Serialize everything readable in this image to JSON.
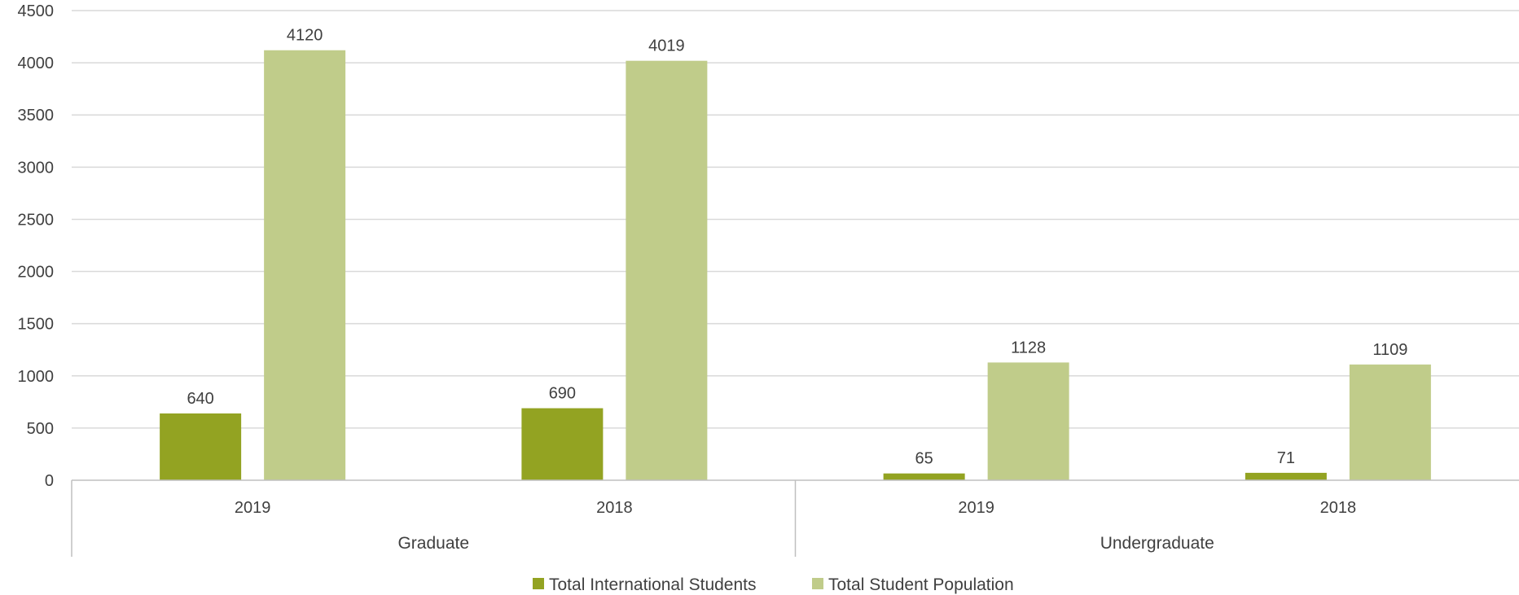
{
  "chart_data": {
    "type": "bar",
    "title": "",
    "xlabel": "",
    "ylabel": "",
    "ylim": [
      0,
      4500
    ],
    "yticks": [
      0,
      500,
      1000,
      1500,
      2000,
      2500,
      3000,
      3500,
      4000,
      4500
    ],
    "groups": [
      {
        "label": "Graduate",
        "categories": [
          "2019",
          "2018"
        ]
      },
      {
        "label": "Undergraduate",
        "categories": [
          "2019",
          "2018"
        ]
      }
    ],
    "series": [
      {
        "name": "Total International Students",
        "color": "#93a322",
        "values": [
          640,
          690,
          65,
          71
        ]
      },
      {
        "name": "Total Student Population",
        "color": "#c0cc8a",
        "values": [
          4120,
          4019,
          1128,
          1109
        ]
      }
    ],
    "grid": true,
    "legend_position": "bottom"
  }
}
